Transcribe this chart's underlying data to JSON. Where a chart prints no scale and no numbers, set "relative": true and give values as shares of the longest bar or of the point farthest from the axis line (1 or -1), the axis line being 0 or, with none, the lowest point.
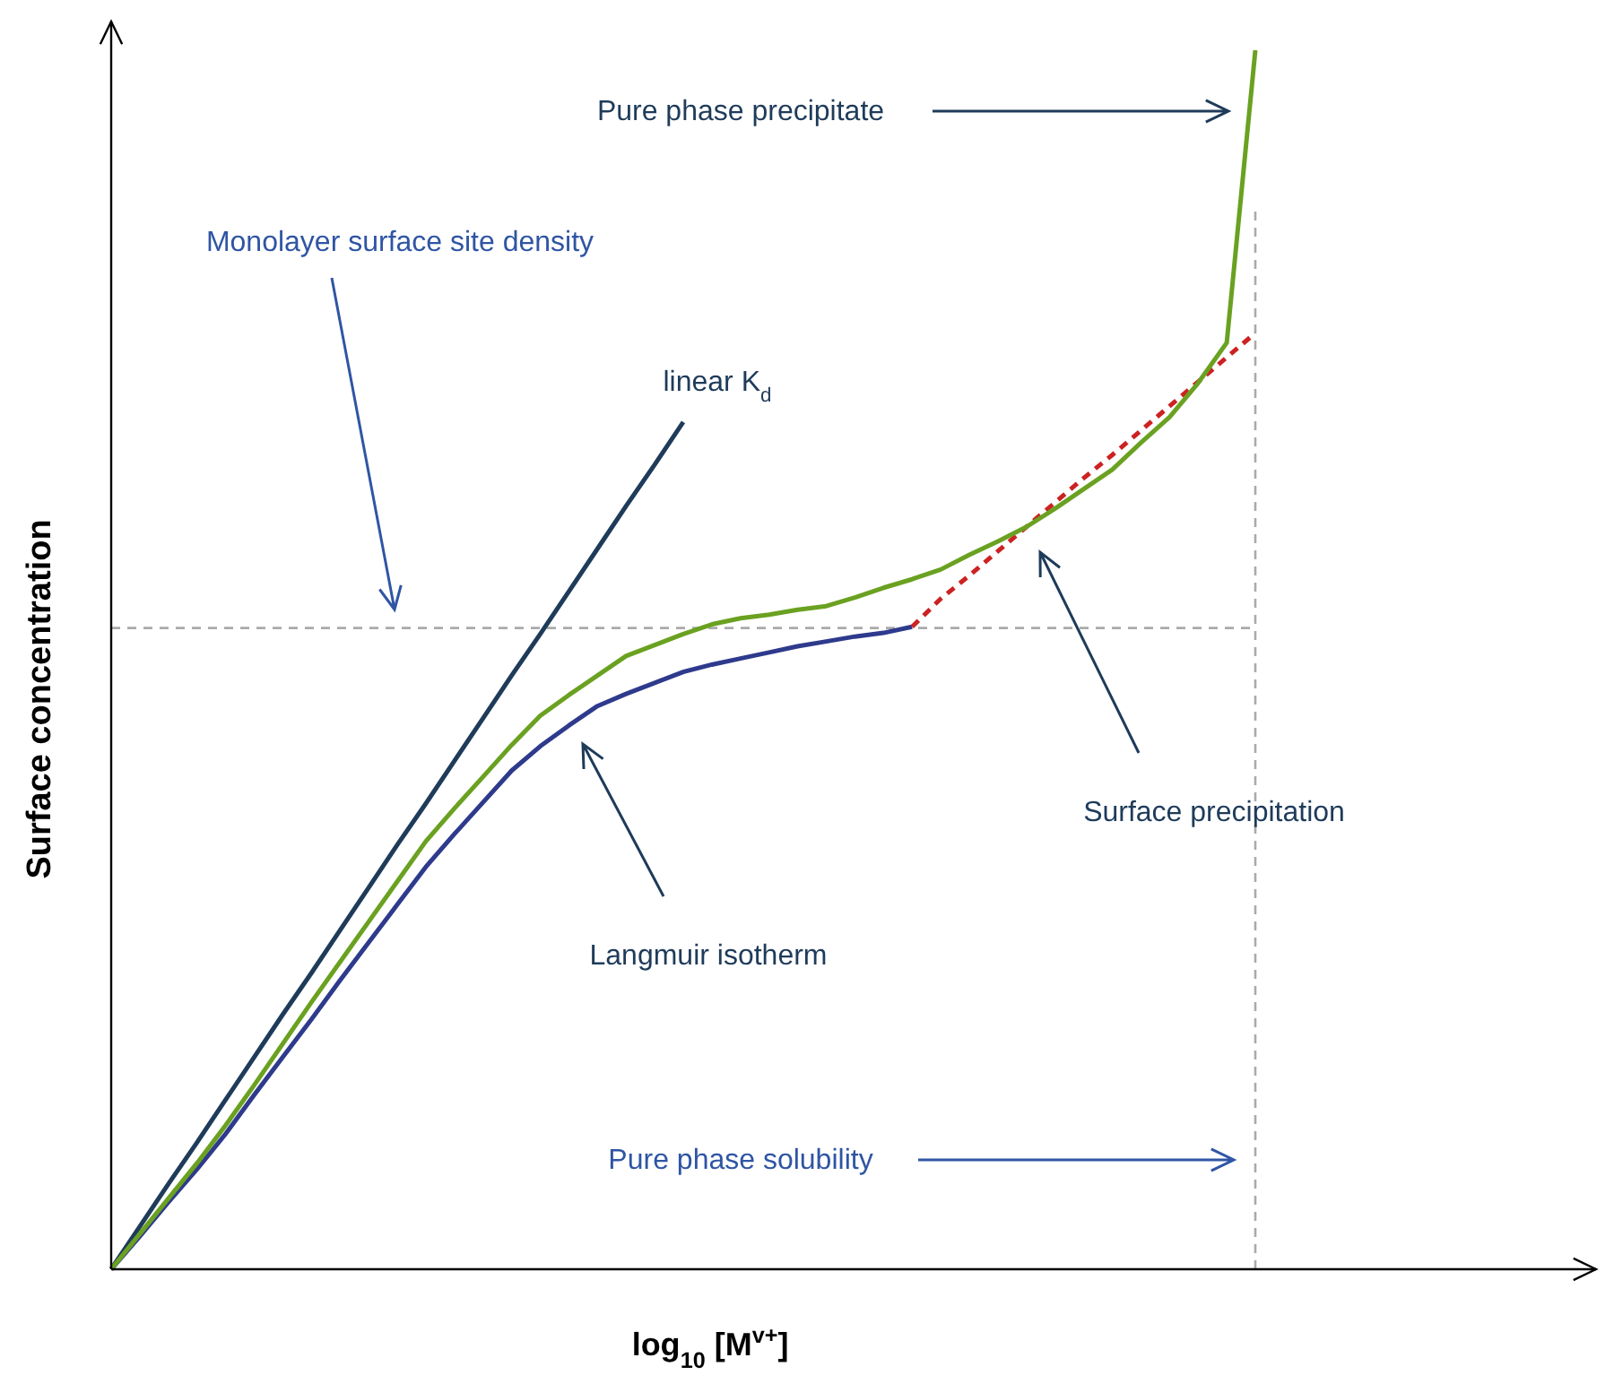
{
  "chart_data": {
    "type": "line",
    "relative": true,
    "xlabel": "log$_{10}$ [M$^{v+}$]",
    "ylabel": "Surface concentration",
    "marker": "none",
    "categories": [
      null,
      null,
      null,
      null,
      null,
      null,
      null,
      null,
      null,
      null,
      null,
      null,
      null,
      null,
      null,
      null,
      null,
      null,
      null,
      null,
      null,
      null,
      null,
      null,
      null,
      null,
      null,
      null,
      null,
      null,
      null,
      null,
      null,
      null,
      null,
      null,
      null,
      null,
      null,
      null,
      null
    ],
    "series": [
      {
        "color": "#1f3b5a",
        "values": [
          0,
          0.035,
          0.07,
          0.104,
          0.139,
          0.174,
          0.209,
          0.243,
          0.278,
          0.313,
          0.348,
          0.382,
          0.417,
          0.452,
          0.487,
          0.521,
          0.556,
          0.591,
          0.626,
          0.66,
          0.695,
          null,
          null,
          null,
          null,
          null,
          null,
          null,
          null,
          null,
          null,
          null,
          null,
          null,
          null,
          null,
          null,
          null,
          null,
          null,
          null
        ]
      },
      {
        "color": "#2e3a8c",
        "values": [
          0,
          0.027,
          0.055,
          0.082,
          0.111,
          0.143,
          0.174,
          0.205,
          0.237,
          0.268,
          0.299,
          0.33,
          0.357,
          0.383,
          0.409,
          0.429,
          0.446,
          0.462,
          0.472,
          0.481,
          0.49,
          0.496,
          0.501,
          0.506,
          0.511,
          0.515,
          0.519,
          0.522,
          0.527,
          null,
          null,
          null,
          null,
          null,
          null,
          null,
          null,
          null,
          null,
          null,
          null
        ]
      },
      {
        "color": "#cc2222",
        "line_style": "dashed",
        "values": [
          null,
          null,
          null,
          null,
          null,
          null,
          null,
          null,
          null,
          null,
          null,
          null,
          null,
          null,
          null,
          null,
          null,
          null,
          null,
          null,
          null,
          null,
          null,
          null,
          null,
          null,
          null,
          null,
          0.527,
          0.55,
          0.569,
          0.589,
          0.609,
          0.629,
          0.649,
          0.668,
          0.688,
          0.708,
          0.728,
          0.748,
          0.768
        ]
      },
      {
        "color": "#6aa121",
        "values": [
          0,
          0.029,
          0.058,
          0.087,
          0.118,
          0.151,
          0.185,
          0.219,
          0.252,
          0.285,
          0.318,
          0.351,
          0.378,
          0.404,
          0.43,
          0.454,
          0.471,
          0.487,
          0.503,
          0.512,
          0.521,
          0.529,
          0.534,
          0.537,
          0.541,
          0.544,
          0.551,
          0.559,
          0.566,
          0.574,
          0.586,
          0.597,
          0.609,
          0.624,
          0.64,
          0.656,
          0.678,
          0.699,
          0.727,
          0.76,
          1
        ]
      }
    ],
    "ref_lines": [
      {
        "axis": "y",
        "value": 0.526,
        "color": "#aaaaaa",
        "line_style": "dashed"
      },
      {
        "axis": "x",
        "color": "#aaaaaa",
        "line_style": "dashed"
      }
    ],
    "annotations": [
      "Monolayer surface site density",
      "linear K$_{d}$",
      "Pure phase precipitate",
      "Langmuir isotherm",
      "Surface precipitation",
      "Pure phase solubility"
    ]
  }
}
